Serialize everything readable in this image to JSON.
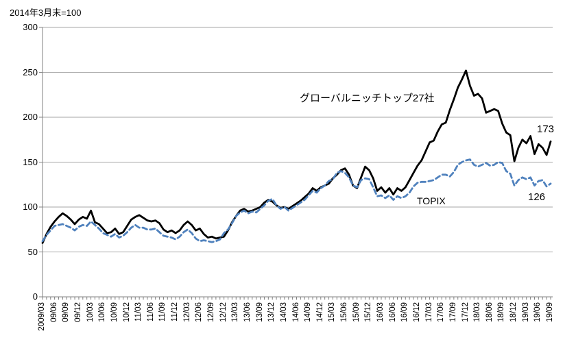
{
  "title": "2014年3月末=100",
  "chart_data": {
    "type": "line",
    "title": "2014年3月末=100",
    "ylim": [
      0,
      300
    ],
    "y_ticks": [
      0,
      50,
      100,
      150,
      200,
      250,
      300
    ],
    "x_label_every_n_months": 3,
    "x_labels": [
      "2009/03",
      "09/06",
      "09/09",
      "09/12",
      "10/03",
      "10/06",
      "10/09",
      "10/12",
      "11/03",
      "11/06",
      "11/09",
      "11/12",
      "12/03",
      "12/06",
      "12/09",
      "12/12",
      "13/03",
      "13/06",
      "13/09",
      "13/12",
      "14/03",
      "14/06",
      "14/09",
      "14/12",
      "15/03",
      "15/06",
      "15/09",
      "15/12",
      "16/03",
      "16/06",
      "16/09",
      "16/12",
      "17/03",
      "17/06",
      "17/09",
      "17/12",
      "18/03",
      "18/06",
      "18/09",
      "18/12",
      "19/03",
      "19/06",
      "19/09"
    ],
    "grid": true,
    "legend_position": "inline-annotations",
    "series": [
      {
        "name": "グローバルニッチトップ27社",
        "style": "solid",
        "color": "#000000",
        "end_label": "173",
        "values": [
          60,
          70,
          78,
          84,
          89,
          93,
          90,
          86,
          81,
          86,
          89,
          87,
          96,
          83,
          81,
          76,
          71,
          72,
          76,
          70,
          72,
          79,
          86,
          89,
          91,
          88,
          85,
          84,
          85,
          82,
          75,
          72,
          74,
          71,
          74,
          80,
          84,
          80,
          74,
          76,
          70,
          66,
          67,
          65,
          66,
          67,
          74,
          83,
          90,
          96,
          98,
          95,
          96,
          98,
          100,
          105,
          108,
          106,
          102,
          99,
          100,
          98,
          101,
          104,
          107,
          111,
          115,
          121,
          118,
          122,
          124,
          126,
          132,
          136,
          141,
          143,
          136,
          124,
          121,
          133,
          145,
          141,
          132,
          118,
          122,
          116,
          121,
          114,
          121,
          118,
          122,
          130,
          138,
          146,
          152,
          162,
          172,
          174,
          184,
          192,
          194,
          208,
          220,
          233,
          242,
          252,
          235,
          224,
          226,
          221,
          205,
          207,
          209,
          207,
          193,
          183,
          180,
          151,
          166,
          175,
          171,
          179,
          159,
          170,
          166,
          158,
          173
        ]
      },
      {
        "name": "TOPIX",
        "style": "dashed",
        "color": "#4F81BD",
        "end_label": "126",
        "values": [
          62,
          69,
          74,
          79,
          80,
          81,
          79,
          77,
          74,
          78,
          80,
          79,
          84,
          80,
          76,
          71,
          69,
          67,
          70,
          66,
          68,
          72,
          77,
          80,
          77,
          77,
          75,
          75,
          76,
          72,
          68,
          67,
          66,
          64,
          67,
          72,
          75,
          71,
          65,
          62,
          63,
          62,
          61,
          62,
          64,
          71,
          75,
          82,
          90,
          94,
          96,
          93,
          95,
          94,
          98,
          102,
          107,
          109,
          102,
          98,
          100,
          96,
          99,
          102,
          105,
          108,
          113,
          118,
          116,
          121,
          124,
          129,
          131,
          138,
          140,
          138,
          133,
          124,
          122,
          130,
          132,
          131,
          122,
          112,
          113,
          110,
          113,
          108,
          112,
          110,
          112,
          116,
          123,
          127,
          128,
          128,
          129,
          130,
          133,
          136,
          136,
          134,
          139,
          147,
          150,
          152,
          153,
          147,
          145,
          147,
          149,
          146,
          147,
          150,
          149,
          140,
          137,
          124,
          130,
          133,
          131,
          133,
          124,
          129,
          130,
          123,
          126
        ]
      }
    ],
    "colors": {
      "axis": "#808080",
      "gridline": "#A6A6A6",
      "text": "#000000",
      "topix_line": "#4F81BD",
      "gnt_line": "#000000"
    }
  }
}
